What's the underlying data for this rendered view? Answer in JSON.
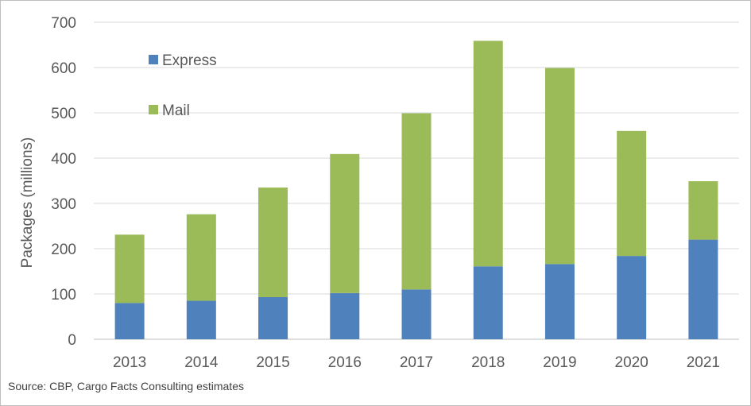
{
  "chart_data": {
    "type": "bar",
    "stacked": true,
    "title": "",
    "xlabel": "",
    "ylabel": "Packages (millions)",
    "ylim": [
      0,
      700
    ],
    "yticks": [
      0,
      100,
      200,
      300,
      400,
      500,
      600,
      700
    ],
    "grid": true,
    "legend_position": "top-left",
    "categories": [
      "2013",
      "2014",
      "2015",
      "2016",
      "2017",
      "2018",
      "2019",
      "2020",
      "2021"
    ],
    "series": [
      {
        "name": "Express",
        "color": "#4f81bd",
        "values": [
          80,
          85,
          93,
          102,
          110,
          161,
          166,
          184,
          220
        ]
      },
      {
        "name": "Mail",
        "color": "#9bbb59",
        "values": [
          151,
          191,
          242,
          307,
          389,
          498,
          433,
          276,
          129
        ]
      }
    ],
    "source": "Source: CBP, Cargo Facts Consulting estimates"
  }
}
